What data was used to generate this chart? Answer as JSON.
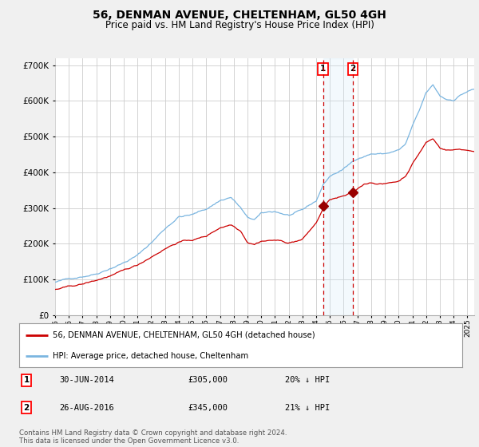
{
  "title": "56, DENMAN AVENUE, CHELTENHAM, GL50 4GH",
  "subtitle": "Price paid vs. HM Land Registry's House Price Index (HPI)",
  "title_fontsize": 10,
  "subtitle_fontsize": 8.5,
  "ylim": [
    0,
    720000
  ],
  "xlim_start": 1995.0,
  "xlim_end": 2025.5,
  "background_color": "#f0f0f0",
  "plot_bg_color": "#ffffff",
  "grid_color": "#cccccc",
  "hpi_color": "#7ab5e0",
  "price_color": "#cc0000",
  "marker_color": "#990000",
  "dashed_line_color": "#cc0000",
  "shade_color": "#d0e8f8",
  "transaction1": {
    "date": "30-JUN-2014",
    "price": 305000,
    "year": 2014.5,
    "label": "1",
    "pct": "20% ↓ HPI"
  },
  "transaction2": {
    "date": "26-AUG-2016",
    "price": 345000,
    "year": 2016.67,
    "label": "2",
    "pct": "21% ↓ HPI"
  },
  "legend_line1": "56, DENMAN AVENUE, CHELTENHAM, GL50 4GH (detached house)",
  "legend_line2": "HPI: Average price, detached house, Cheltenham",
  "footer": "Contains HM Land Registry data © Crown copyright and database right 2024.\nThis data is licensed under the Open Government Licence v3.0."
}
